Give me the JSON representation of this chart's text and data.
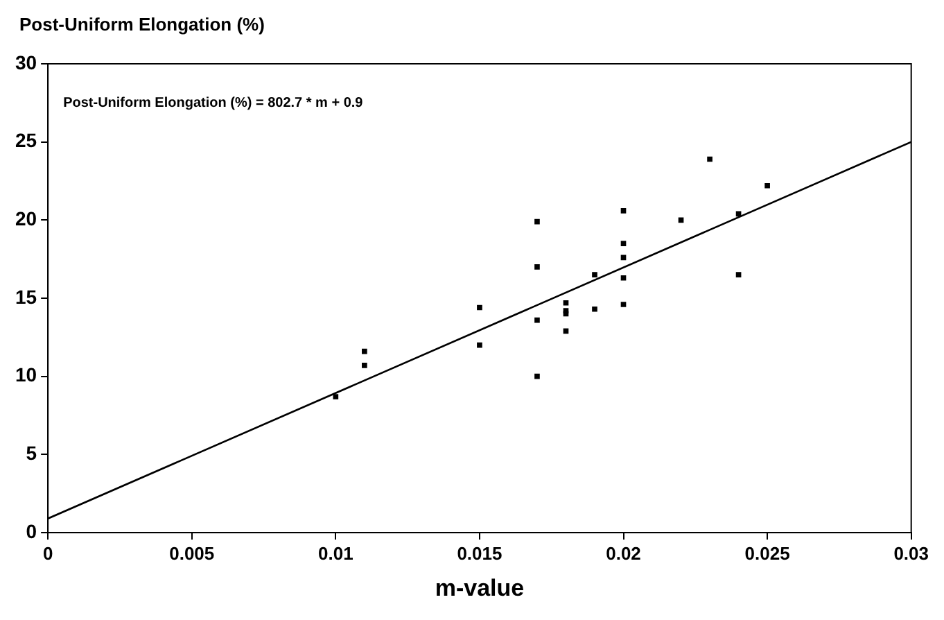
{
  "chart_data": {
    "type": "scatter",
    "ylabel": "Post-Uniform Elongation (%)",
    "xlabel": "m-value",
    "annotations": [
      "Post-Uniform Elongation (%) = 802.7 * m + 0.9"
    ],
    "series": [
      {
        "type": "scatter",
        "color": "#000000",
        "marker": "square",
        "x": [
          0.01,
          0.011,
          0.011,
          0.015,
          0.015,
          0.017,
          0.017,
          0.017,
          0.017,
          0.018,
          0.018,
          0.018,
          0.018,
          0.019,
          0.019,
          0.02,
          0.02,
          0.02,
          0.02,
          0.02,
          0.022,
          0.023,
          0.024,
          0.024,
          0.025
        ],
        "values": [
          8.7,
          11.6,
          10.7,
          14.4,
          12.0,
          19.9,
          17.0,
          13.6,
          10.0,
          14.7,
          14.2,
          14.0,
          12.9,
          16.5,
          14.3,
          20.6,
          18.5,
          17.6,
          16.3,
          14.6,
          20.0,
          23.9,
          20.4,
          16.5,
          22.2
        ]
      },
      {
        "type": "line",
        "color": "#000000",
        "marker": "none",
        "x": [
          0,
          0.03
        ],
        "values": [
          0.9,
          25.0
        ]
      }
    ],
    "xlim": [
      0,
      0.03
    ],
    "xticks": [
      0,
      0.005,
      0.01,
      0.015,
      0.02,
      0.025,
      0.03
    ],
    "ylim": [
      0,
      30
    ],
    "yticks": [
      0,
      5,
      10,
      15,
      20,
      25,
      30
    ],
    "grid": false,
    "legend": false
  }
}
